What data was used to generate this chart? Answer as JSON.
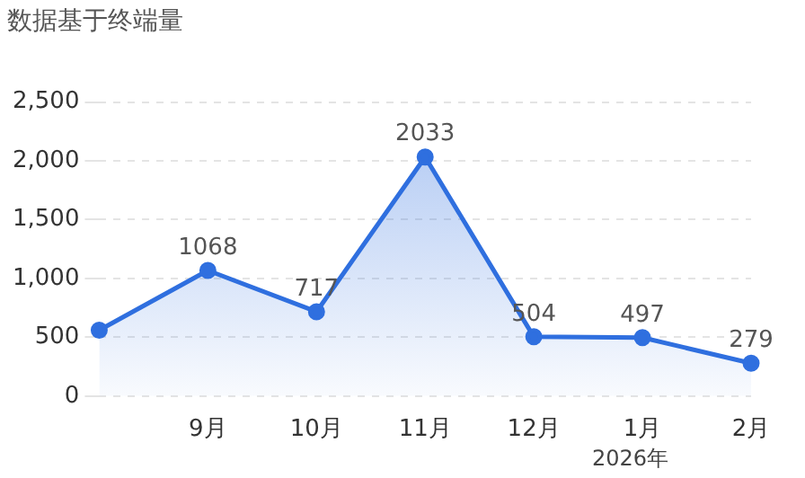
{
  "chart_data": {
    "type": "area",
    "title": "数据基于终端量",
    "categories": [
      null,
      "9月",
      "10月",
      "11月",
      "12月",
      "1月",
      "2月"
    ],
    "series": [
      {
        "color": "#2f6fdf",
        "values": [
          560,
          1068,
          717,
          2033,
          504,
          497,
          279
        ],
        "value_labels": [
          null,
          "1068",
          "717",
          "2033",
          "504",
          "497",
          "279"
        ]
      }
    ],
    "ylim": [
      0,
      2500
    ],
    "yticks": [
      0,
      500,
      {
        "value": 1000,
        "label": "1,000"
      },
      {
        "value": 1500,
        "label": "1,500"
      },
      {
        "value": 2000,
        "label": "2,000"
      },
      {
        "value": 2500,
        "label": "2,500"
      }
    ],
    "grid": "y",
    "marker": "circle",
    "line_style": "solid",
    "legend": false,
    "annotations": [
      "2026年"
    ]
  }
}
